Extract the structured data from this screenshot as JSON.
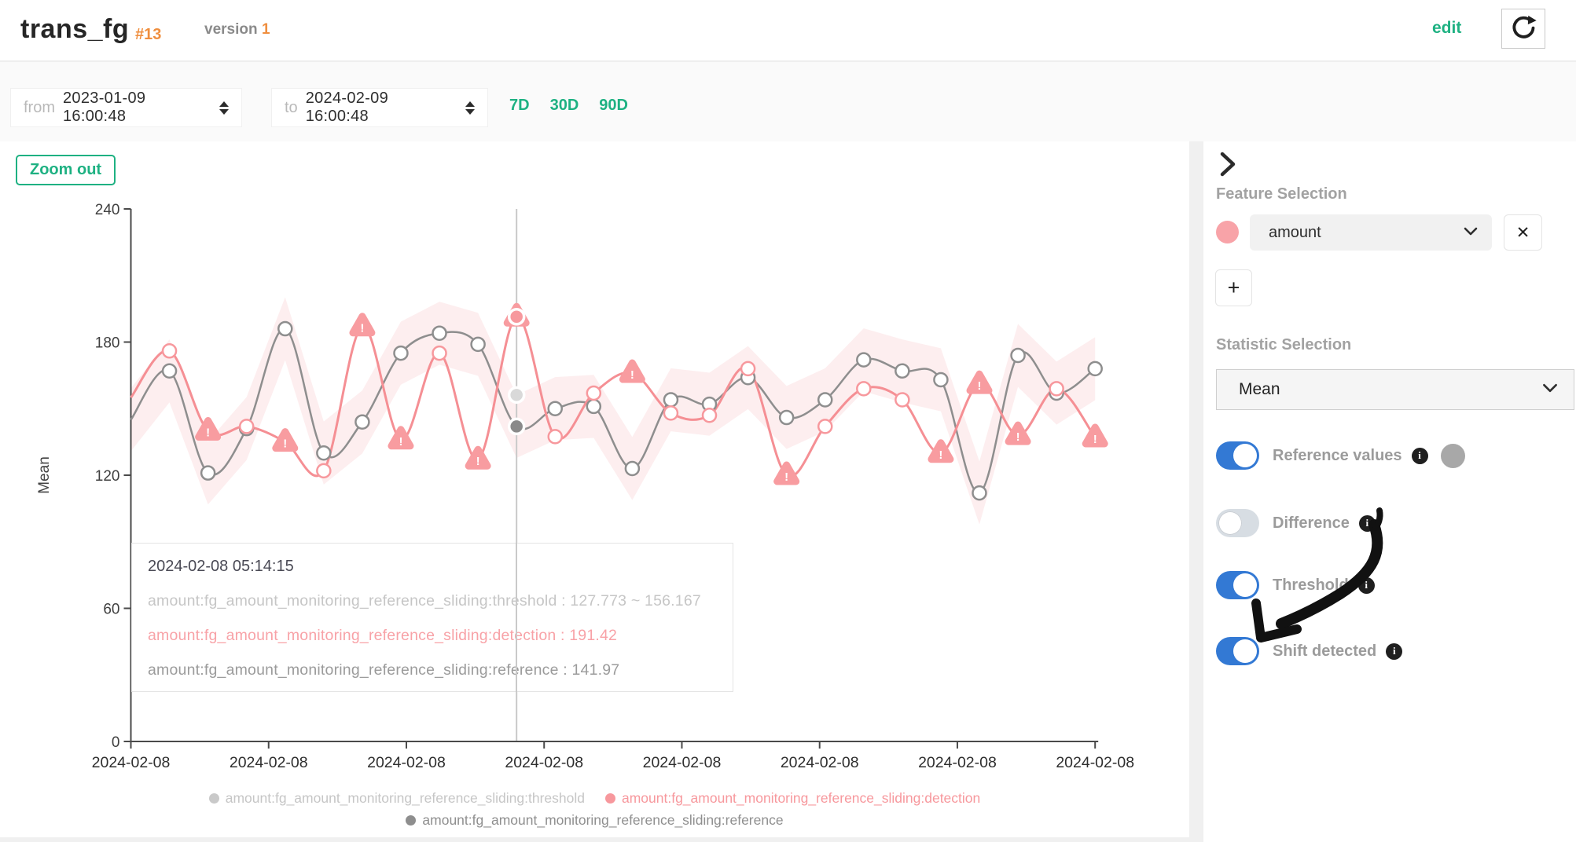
{
  "header": {
    "title": "trans_fg",
    "badge": "#13",
    "version_label": "version",
    "version_value": "1",
    "edit_label": "edit"
  },
  "controls": {
    "from_label": "from",
    "from_value": "2023-01-09 16:00:48",
    "to_label": "to",
    "to_value": "2024-02-09 16:00:48",
    "ranges": [
      "7D",
      "30D",
      "90D"
    ]
  },
  "chart": {
    "zoom_out_label": "Zoom out"
  },
  "tooltip": {
    "timestamp": "2024-02-08 05:14:15",
    "rows": [
      {
        "text": "amount:fg_amount_monitoring_reference_sliding:threshold : 127.773 ~ 156.167",
        "color": "#c6c6c6"
      },
      {
        "text": "amount:fg_amount_monitoring_reference_sliding:detection : 191.42",
        "color": "#f8a2a7"
      },
      {
        "text": "amount:fg_amount_monitoring_reference_sliding:reference : 141.97",
        "color": "#9b9b9b"
      }
    ]
  },
  "sidebar": {
    "feature_heading": "Feature Selection",
    "feature_selected": "amount",
    "feature_color": "#f8a3a8",
    "remove_label": "✕",
    "add_label": "+",
    "stat_heading": "Statistic Selection",
    "stat_selected": "Mean",
    "toggles": [
      {
        "label": "Reference values",
        "state": true,
        "info": true,
        "color_dot": "#a8a8a8"
      },
      {
        "label": "Difference",
        "state": false,
        "info": true
      },
      {
        "label": "Threshold",
        "state": true,
        "info": true
      },
      {
        "label": "Shift detected",
        "state": true,
        "info": true
      }
    ]
  },
  "colors": {
    "accent_green": "#1eb182",
    "accent_orange": "#ef8e3e",
    "toggle_on_blue": "#3379d4",
    "detection_pink": "#f58f94",
    "reference_gray": "#8e8e8e",
    "threshold_gray": "#c9c9c9",
    "band_fill": "rgba(244,160,164,0.18)"
  },
  "chart_data": {
    "type": "line",
    "ylabel": "Mean",
    "ylim": [
      0,
      240
    ],
    "yticks": [
      0,
      60,
      120,
      180,
      240
    ],
    "xticklabels": [
      "2024-02-08",
      "2024-02-08",
      "2024-02-08",
      "2024-02-08",
      "2024-02-08",
      "2024-02-08",
      "2024-02-08",
      "2024-02-08"
    ],
    "threshold_delta": 14.2,
    "series": [
      {
        "name": "amount:fg_amount_monitoring_reference_sliding:threshold",
        "role": "threshold-band",
        "color": "#c9c9c9",
        "note": "band = reference +/- threshold_delta"
      },
      {
        "name": "amount:fg_amount_monitoring_reference_sliding:detection",
        "role": "detection",
        "color": "#f7989d",
        "values": [
          155,
          176,
          140,
          142,
          135,
          122,
          187,
          136,
          175,
          127,
          191.42,
          137.4,
          157,
          166,
          148,
          147,
          168,
          120,
          142,
          159,
          154,
          130,
          161,
          138,
          159,
          137
        ],
        "shift_detected_indices": [
          2,
          4,
          6,
          7,
          9,
          10,
          13,
          17,
          21,
          22,
          23,
          25
        ]
      },
      {
        "name": "amount:fg_amount_monitoring_reference_sliding:reference",
        "role": "reference",
        "color": "#8e8e8e",
        "values": [
          145,
          167,
          121,
          141,
          186,
          130,
          144,
          175,
          184,
          179,
          141.97,
          150,
          151,
          123,
          154,
          152,
          164,
          146,
          154,
          172,
          167,
          163,
          112,
          174,
          157,
          168
        ]
      }
    ],
    "highlight": {
      "index": 10,
      "timestamp": "2024-02-08 05:14:15",
      "detection": 191.42,
      "reference": 141.97,
      "threshold_low": 127.773,
      "threshold_high": 156.167
    }
  }
}
